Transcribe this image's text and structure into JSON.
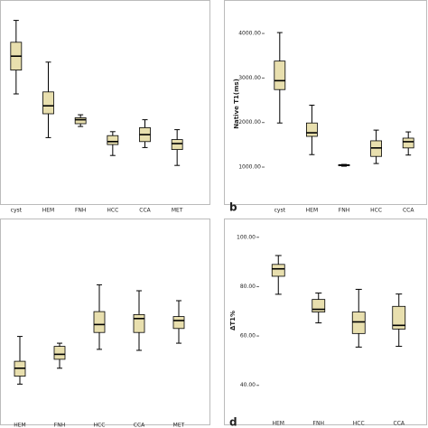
{
  "chart_data": [
    {
      "type": "box",
      "categories": [
        "cyst",
        "HEM",
        "FNH",
        "HCC",
        "CCA",
        "MET"
      ],
      "boxes": [
        {
          "min": 55,
          "q1": 67,
          "median": 74,
          "q3": 81,
          "max": 92
        },
        {
          "min": 33,
          "q1": 45,
          "median": 49,
          "q3": 56,
          "max": 71
        },
        {
          "min": 38.6,
          "q1": 40,
          "median": 42,
          "q3": 43,
          "max": 44.5
        },
        {
          "min": 24,
          "q1": 29.5,
          "median": 31,
          "q3": 34,
          "max": 36
        },
        {
          "min": 28,
          "q1": 31,
          "median": 34.5,
          "q3": 38,
          "max": 42
        },
        {
          "min": 19,
          "q1": 27,
          "median": 30,
          "q3": 32,
          "max": 37
        }
      ],
      "ylim": [
        0,
        100
      ],
      "color": "#e8dfae"
    },
    {
      "type": "box",
      "categories": [
        "cyst",
        "HEM",
        "FNH",
        "HCC",
        "CCA"
      ],
      "boxes": [
        {
          "min": 1990,
          "q1": 2740,
          "median": 2940,
          "q3": 3380,
          "max": 4020
        },
        {
          "min": 1280,
          "q1": 1690,
          "median": 1770,
          "q3": 1990,
          "max": 2390
        },
        {
          "min": 1020,
          "q1": 1030,
          "median": 1040,
          "q3": 1055,
          "max": 1060
        },
        {
          "min": 1080,
          "q1": 1240,
          "median": 1430,
          "q3": 1590,
          "max": 1830
        },
        {
          "min": 1270,
          "q1": 1430,
          "median": 1570,
          "q3": 1650,
          "max": 1790
        }
      ],
      "ylim": [
        190,
        4650
      ],
      "yticks": [
        {
          "value": 1000,
          "label": "1000.00"
        },
        {
          "value": 2000,
          "label": "2000.00"
        },
        {
          "value": 3000,
          "label": "3000.00"
        },
        {
          "value": 4000,
          "label": "4000.00"
        }
      ],
      "ylabel": "Native T1(ms)",
      "panel_label": "b",
      "color": "#e8dfae"
    },
    {
      "type": "box",
      "categories": [
        "HEM",
        "FNH",
        "HCC",
        "CCA",
        "MET"
      ],
      "boxes": [
        {
          "min": 18,
          "q1": 22,
          "median": 26,
          "q3": 29.5,
          "max": 42
        },
        {
          "min": 26,
          "q1": 30.5,
          "median": 33,
          "q3": 37,
          "max": 38.6
        },
        {
          "min": 35.5,
          "q1": 44,
          "median": 48,
          "q3": 54.5,
          "max": 68
        },
        {
          "min": 35,
          "q1": 44,
          "median": 51,
          "q3": 53,
          "max": 65
        },
        {
          "min": 38.6,
          "q1": 46,
          "median": 50,
          "q3": 52,
          "max": 60
        }
      ],
      "ylim": [
        0,
        100
      ],
      "color": "#e8dfae"
    },
    {
      "type": "box",
      "categories": [
        "HEM",
        "FNH",
        "HCC",
        "CCA"
      ],
      "boxes": [
        {
          "min": 76.9,
          "q1": 84.2,
          "median": 87.2,
          "q3": 89,
          "max": 92.6
        },
        {
          "min": 65.3,
          "q1": 69.7,
          "median": 70.8,
          "q3": 74.8,
          "max": 77.4
        },
        {
          "min": 55.5,
          "q1": 61,
          "median": 65.7,
          "q3": 69.7,
          "max": 78.9
        },
        {
          "min": 55.8,
          "q1": 62.8,
          "median": 64.3,
          "q3": 72,
          "max": 77
        }
      ],
      "ylim": [
        26,
        106.5
      ],
      "yticks": [
        {
          "value": 40,
          "label": "40.00"
        },
        {
          "value": 60,
          "label": "60.00"
        },
        {
          "value": 80,
          "label": "80.00"
        },
        {
          "value": 100,
          "label": "100.00"
        }
      ],
      "ylabel": "ΔT1%",
      "panel_label": "d",
      "color": "#e8dfae"
    }
  ]
}
